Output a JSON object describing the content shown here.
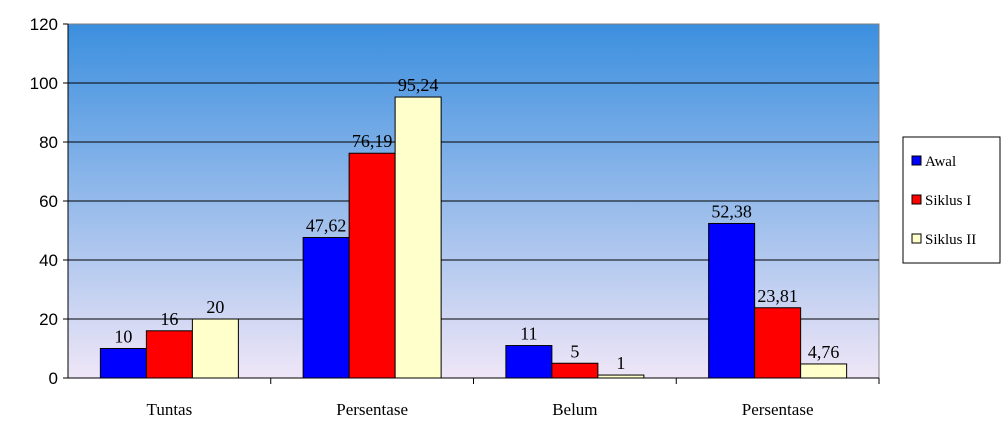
{
  "chart_data": {
    "type": "bar",
    "title": "",
    "xlabel": "",
    "ylabel": "",
    "ylim": [
      0,
      120
    ],
    "yticks": [
      0,
      20,
      40,
      60,
      80,
      100,
      120
    ],
    "grid": true,
    "legend_position": "right",
    "categories": [
      "Tuntas",
      "Persentase",
      "Belum",
      "Persentase"
    ],
    "series": [
      {
        "name": "Awal",
        "color": "#0000ff",
        "values": [
          10,
          47.62,
          11,
          52.38
        ],
        "labels": [
          "10",
          "47,62",
          "11",
          "52,38"
        ]
      },
      {
        "name": "Siklus I",
        "color": "#ff0000",
        "values": [
          16,
          76.19,
          5,
          23.81
        ],
        "labels": [
          "16",
          "76,19",
          "5",
          "23,81"
        ]
      },
      {
        "name": "Siklus II",
        "color": "#ffffcc",
        "values": [
          20,
          95.24,
          1,
          4.76
        ],
        "labels": [
          "20",
          "95,24",
          "1",
          "4,76"
        ]
      }
    ],
    "background_gradient": [
      "#3b8fdf",
      "#efe6f7"
    ]
  }
}
